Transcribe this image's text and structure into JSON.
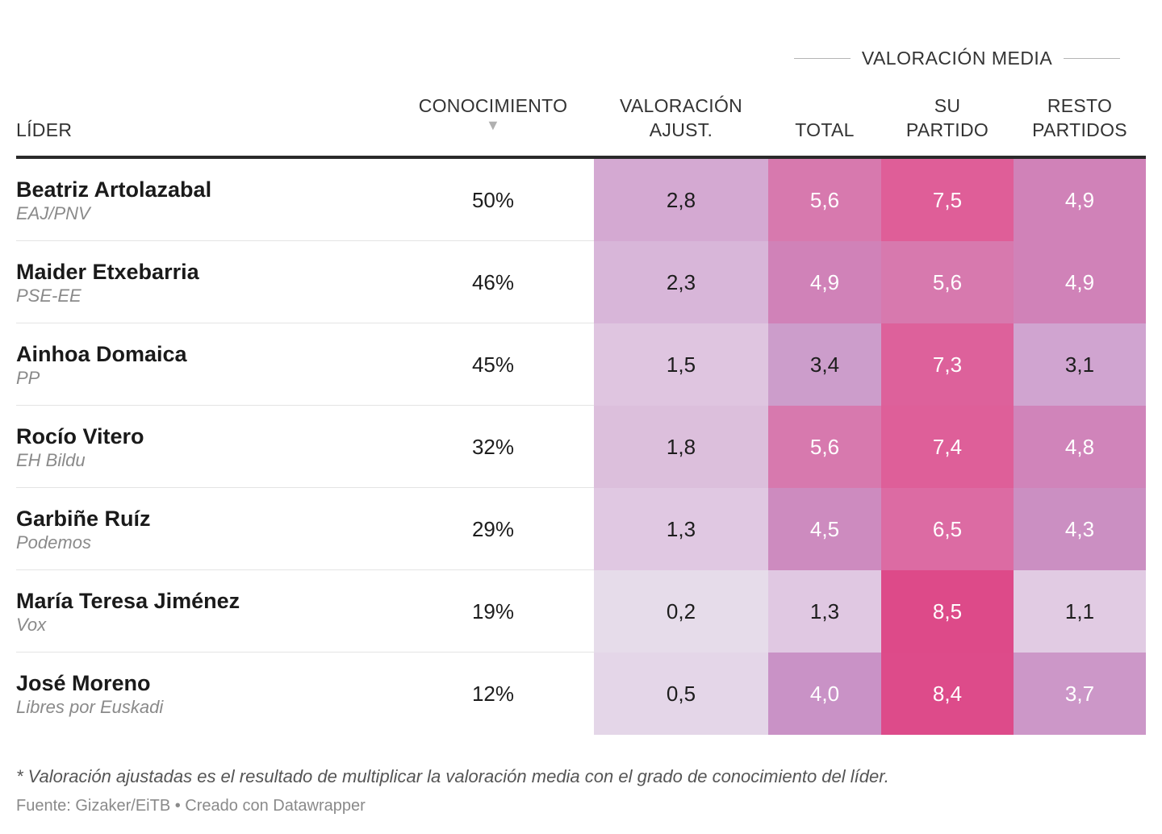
{
  "header": {
    "group_label": "VALORACIÓN MEDIA",
    "col_leader": "LÍDER",
    "col_conocimiento": "CONOCIMIENTO",
    "col_conocimiento_sort": "▼",
    "col_valoracion_ajust_1": "VALORACIÓN",
    "col_valoracion_ajust_2": "AJUST.",
    "col_total": "TOTAL",
    "col_su_partido_1": "SU",
    "col_su_partido_2": "PARTIDO",
    "col_resto_1": "RESTO",
    "col_resto_2": "PARTIDOS"
  },
  "chart_data": {
    "type": "table",
    "columns": [
      "LÍDER",
      "CONOCIMIENTO",
      "VALORACIÓN AJUST.",
      "TOTAL",
      "SU PARTIDO",
      "RESTO PARTIDOS"
    ],
    "rows": [
      {
        "name": "Beatriz Artolazabal",
        "party": "EAJ/PNV",
        "conocimiento": "50%",
        "ajust": "2,8",
        "total": "5,6",
        "su": "7,5",
        "resto": "4,9",
        "ajust_color": "#d4a9d2",
        "total_color": "#d779ae",
        "su_color": "#df5e98",
        "resto_color": "#d082b8"
      },
      {
        "name": "Maider Etxebarria",
        "party": "PSE-EE",
        "conocimiento": "46%",
        "ajust": "2,3",
        "total": "4,9",
        "su": "5,6",
        "resto": "4,9",
        "ajust_color": "#d8b6d9",
        "total_color": "#d082b8",
        "su_color": "#d779ae",
        "resto_color": "#d082b8"
      },
      {
        "name": "Ainhoa Domaica",
        "party": "PP",
        "conocimiento": "45%",
        "ajust": "1,5",
        "total": "3,4",
        "su": "7,3",
        "resto": "3,1",
        "ajust_color": "#dfc5e0",
        "total_color": "#cc9dcb",
        "su_color": "#dd619b",
        "resto_color": "#d0a4d0"
      },
      {
        "name": "Rocío Vitero",
        "party": "EH Bildu",
        "conocimiento": "32%",
        "ajust": "1,8",
        "total": "5,6",
        "su": "7,4",
        "resto": "4,8",
        "ajust_color": "#dcbfdc",
        "total_color": "#d779ae",
        "su_color": "#de5f99",
        "resto_color": "#d084ba"
      },
      {
        "name": "Garbiñe Ruíz",
        "party": "Podemos",
        "conocimiento": "29%",
        "ajust": "1,3",
        "total": "4,5",
        "su": "6,5",
        "resto": "4,3",
        "ajust_color": "#e0c8e2",
        "total_color": "#cd8bbf",
        "su_color": "#dc6ba3",
        "resto_color": "#cb8fc2"
      },
      {
        "name": "María Teresa Jiménez",
        "party": "Vox",
        "conocimiento": "19%",
        "ajust": "0,2",
        "total": "1,3",
        "su": "8,5",
        "resto": "1,1",
        "ajust_color": "#e6dcea",
        "total_color": "#e0c8e2",
        "su_color": "#dd4a89",
        "resto_color": "#e1cbe3"
      },
      {
        "name": "José Moreno",
        "party": "Libres por Euskadi",
        "conocimiento": "12%",
        "ajust": "0,5",
        "total": "4,0",
        "su": "8,4",
        "resto": "3,7",
        "ajust_color": "#e4d6e8",
        "total_color": "#c992c6",
        "su_color": "#dd4b8a",
        "resto_color": "#cc97c8"
      }
    ]
  },
  "footer": {
    "note": "* Valoración ajustadas es el resultado de multiplicar la valoración media con el grado de conocimiento del líder.",
    "source": "Fuente: Gizaker/EiTB • Creado con Datawrapper"
  }
}
